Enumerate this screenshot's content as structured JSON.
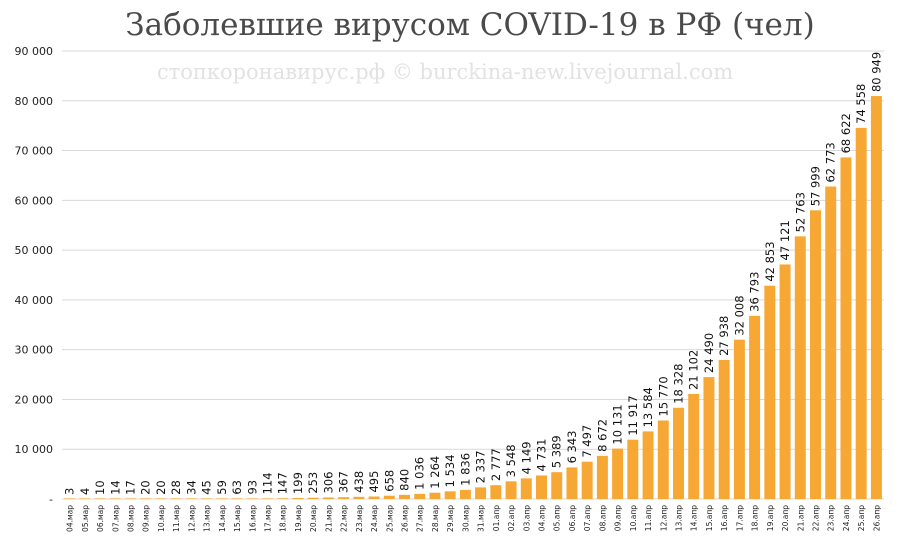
{
  "chart_data": {
    "type": "bar",
    "title": "Заболевшие вирусом COVID-19 в РФ (чел)",
    "watermark": "стопкоронавирус.рф © burckina-new.livejournal.com",
    "ylim": [
      0,
      90000
    ],
    "yticks": [
      {
        "value": 0,
        "label": "-"
      },
      {
        "value": 10000,
        "label": "10 000"
      },
      {
        "value": 20000,
        "label": "20 000"
      },
      {
        "value": 30000,
        "label": "30 000"
      },
      {
        "value": 40000,
        "label": "40 000"
      },
      {
        "value": 50000,
        "label": "50 000"
      },
      {
        "value": 60000,
        "label": "60 000"
      },
      {
        "value": 70000,
        "label": "70 000"
      },
      {
        "value": 80000,
        "label": "80 000"
      },
      {
        "value": 90000,
        "label": "90 000"
      }
    ],
    "grid": true,
    "bar_color": "#f7a733",
    "categories": [
      "04.мар",
      "05.мар",
      "06.мар",
      "07.мар",
      "08.мар",
      "09.мар",
      "10.мар",
      "11.мар",
      "12.мар",
      "13.мар",
      "14.мар",
      "15.мар",
      "16.мар",
      "17.мар",
      "18.мар",
      "19.мар",
      "20.мар",
      "21.мар",
      "22.мар",
      "23.мар",
      "24.мар",
      "25.мар",
      "26.мар",
      "27.мар",
      "28.мар",
      "29.мар",
      "30.мар",
      "31.мар",
      "01.апр",
      "02.апр",
      "03.апр",
      "04.апр",
      "05.апр",
      "06.апр",
      "07.апр",
      "08.апр",
      "09.апр",
      "10.апр",
      "11.апр",
      "12.апр",
      "13.апр",
      "14.апр",
      "15.апр",
      "16.апр",
      "17.апр",
      "18.апр",
      "19.апр",
      "20.апр",
      "21.апр",
      "22.апр",
      "23.апр",
      "24.апр",
      "25.апр",
      "26.апр"
    ],
    "values": [
      3,
      4,
      10,
      14,
      17,
      20,
      20,
      28,
      34,
      45,
      59,
      63,
      93,
      114,
      147,
      199,
      253,
      306,
      367,
      438,
      495,
      658,
      840,
      1036,
      1264,
      1534,
      1836,
      2337,
      2777,
      3548,
      4149,
      4731,
      5389,
      6343,
      7497,
      8672,
      10131,
      11917,
      13584,
      15770,
      18328,
      21102,
      24490,
      27938,
      32008,
      36793,
      42853,
      47121,
      52763,
      57999,
      62773,
      68622,
      74558,
      80949
    ],
    "value_labels": [
      "3",
      "4",
      "10",
      "14",
      "17",
      "20",
      "20",
      "28",
      "34",
      "45",
      "59",
      "63",
      "93",
      "114",
      "147",
      "199",
      "253",
      "306",
      "367",
      "438",
      "495",
      "658",
      "840",
      "1 036",
      "1 264",
      "1 534",
      "1 836",
      "2 337",
      "2 777",
      "3 548",
      "4 149",
      "4 731",
      "5 389",
      "6 343",
      "7 497",
      "8 672",
      "10 131",
      "11 917",
      "13 584",
      "15 770",
      "18 328",
      "21 102",
      "24 490",
      "27 938",
      "32 008",
      "36 793",
      "42 853",
      "47 121",
      "52 763",
      "57 999",
      "62 773",
      "68 622",
      "74 558",
      "80 949"
    ]
  }
}
